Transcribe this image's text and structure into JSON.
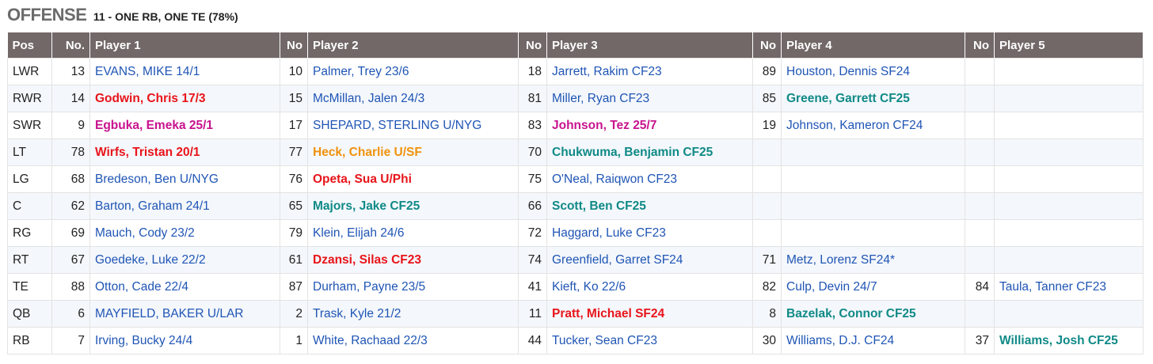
{
  "heading": {
    "title": "OFFENSE",
    "subtitle": "11 - ONE RB, ONE TE (78%)"
  },
  "colors": {
    "header_bg": "#726868",
    "default": "#1f55b5",
    "red": "#e8141a",
    "magenta": "#c8128e",
    "teal": "#0f8a87",
    "orange": "#f0920c"
  },
  "columns": [
    "Pos",
    "No.",
    "Player 1",
    "No",
    "Player 2",
    "No",
    "Player 3",
    "No",
    "Player 4",
    "No",
    "Player 5"
  ],
  "rows": [
    {
      "pos": "LWR",
      "players": [
        {
          "no": "13",
          "name": "EVANS, MIKE 14/1",
          "style": "blue"
        },
        {
          "no": "10",
          "name": "Palmer, Trey 23/6",
          "style": "blue"
        },
        {
          "no": "18",
          "name": "Jarrett, Rakim CF23",
          "style": "blue"
        },
        {
          "no": "89",
          "name": "Houston, Dennis SF24",
          "style": "blue"
        },
        {
          "no": "",
          "name": "",
          "style": "blue"
        }
      ]
    },
    {
      "pos": "RWR",
      "players": [
        {
          "no": "14",
          "name": "Godwin, Chris 17/3",
          "style": "red"
        },
        {
          "no": "15",
          "name": "McMillan, Jalen 24/3",
          "style": "blue"
        },
        {
          "no": "81",
          "name": "Miller, Ryan CF23",
          "style": "blue"
        },
        {
          "no": "85",
          "name": "Greene, Garrett CF25",
          "style": "teal"
        },
        {
          "no": "",
          "name": "",
          "style": "blue"
        }
      ]
    },
    {
      "pos": "SWR",
      "players": [
        {
          "no": "9",
          "name": "Egbuka, Emeka 25/1",
          "style": "magenta"
        },
        {
          "no": "17",
          "name": "SHEPARD, STERLING U/NYG",
          "style": "blue"
        },
        {
          "no": "83",
          "name": "Johnson, Tez 25/7",
          "style": "magenta"
        },
        {
          "no": "19",
          "name": "Johnson, Kameron CF24",
          "style": "blue"
        },
        {
          "no": "",
          "name": "",
          "style": "blue"
        }
      ]
    },
    {
      "pos": "LT",
      "players": [
        {
          "no": "78",
          "name": "Wirfs, Tristan 20/1",
          "style": "red"
        },
        {
          "no": "77",
          "name": "Heck, Charlie U/SF",
          "style": "orange"
        },
        {
          "no": "70",
          "name": "Chukwuma, Benjamin CF25",
          "style": "teal"
        },
        {
          "no": "",
          "name": "",
          "style": "blue"
        },
        {
          "no": "",
          "name": "",
          "style": "blue"
        }
      ]
    },
    {
      "pos": "LG",
      "players": [
        {
          "no": "68",
          "name": "Bredeson, Ben U/NYG",
          "style": "blue"
        },
        {
          "no": "76",
          "name": "Opeta, Sua U/Phi",
          "style": "red"
        },
        {
          "no": "75",
          "name": "O'Neal, Raiqwon CF23",
          "style": "blue"
        },
        {
          "no": "",
          "name": "",
          "style": "blue"
        },
        {
          "no": "",
          "name": "",
          "style": "blue"
        }
      ]
    },
    {
      "pos": "C",
      "players": [
        {
          "no": "62",
          "name": "Barton, Graham 24/1",
          "style": "blue"
        },
        {
          "no": "65",
          "name": "Majors, Jake CF25",
          "style": "teal"
        },
        {
          "no": "66",
          "name": "Scott, Ben CF25",
          "style": "teal"
        },
        {
          "no": "",
          "name": "",
          "style": "blue"
        },
        {
          "no": "",
          "name": "",
          "style": "blue"
        }
      ]
    },
    {
      "pos": "RG",
      "players": [
        {
          "no": "69",
          "name": "Mauch, Cody 23/2",
          "style": "blue"
        },
        {
          "no": "79",
          "name": "Klein, Elijah 24/6",
          "style": "blue"
        },
        {
          "no": "72",
          "name": "Haggard, Luke CF23",
          "style": "blue"
        },
        {
          "no": "",
          "name": "",
          "style": "blue"
        },
        {
          "no": "",
          "name": "",
          "style": "blue"
        }
      ]
    },
    {
      "pos": "RT",
      "players": [
        {
          "no": "67",
          "name": "Goedeke, Luke 22/2",
          "style": "blue"
        },
        {
          "no": "61",
          "name": "Dzansi, Silas CF23",
          "style": "red"
        },
        {
          "no": "74",
          "name": "Greenfield, Garret SF24",
          "style": "blue"
        },
        {
          "no": "71",
          "name": "Metz, Lorenz SF24*",
          "style": "blue"
        },
        {
          "no": "",
          "name": "",
          "style": "blue"
        }
      ]
    },
    {
      "pos": "TE",
      "players": [
        {
          "no": "88",
          "name": "Otton, Cade 22/4",
          "style": "blue"
        },
        {
          "no": "87",
          "name": "Durham, Payne 23/5",
          "style": "blue"
        },
        {
          "no": "41",
          "name": "Kieft, Ko 22/6",
          "style": "blue"
        },
        {
          "no": "82",
          "name": "Culp, Devin 24/7",
          "style": "blue"
        },
        {
          "no": "84",
          "name": "Taula, Tanner CF23",
          "style": "blue"
        }
      ]
    },
    {
      "pos": "QB",
      "players": [
        {
          "no": "6",
          "name": "MAYFIELD, BAKER U/LAR",
          "style": "blue"
        },
        {
          "no": "2",
          "name": "Trask, Kyle 21/2",
          "style": "blue"
        },
        {
          "no": "11",
          "name": "Pratt, Michael SF24",
          "style": "red"
        },
        {
          "no": "8",
          "name": "Bazelak, Connor CF25",
          "style": "teal"
        },
        {
          "no": "",
          "name": "",
          "style": "blue"
        }
      ]
    },
    {
      "pos": "RB",
      "players": [
        {
          "no": "7",
          "name": "Irving, Bucky 24/4",
          "style": "blue"
        },
        {
          "no": "1",
          "name": "White, Rachaad 22/3",
          "style": "blue"
        },
        {
          "no": "44",
          "name": "Tucker, Sean CF23",
          "style": "blue"
        },
        {
          "no": "30",
          "name": "Williams, D.J. CF24",
          "style": "blue"
        },
        {
          "no": "37",
          "name": "Williams, Josh CF25",
          "style": "teal"
        }
      ]
    }
  ]
}
